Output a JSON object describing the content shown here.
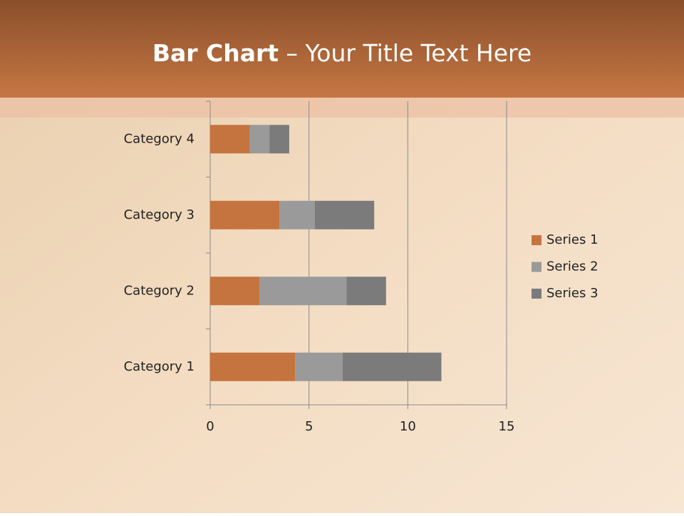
{
  "chart_data": {
    "type": "stacked-bar-horizontal",
    "title_main": "Bar Chart",
    "title_rest": "– Your Title Text Here",
    "categories": [
      "Category 1",
      "Category 2",
      "Category 3",
      "Category 4"
    ],
    "series": [
      {
        "name": "Series 1",
        "color": "#c5743f",
        "values": [
          4.3,
          2.5,
          3.5,
          2.0
        ]
      },
      {
        "name": "Series 2",
        "color": "#9a9a9a",
        "values": [
          2.4,
          4.4,
          1.8,
          1.0
        ]
      },
      {
        "name": "Series 3",
        "color": "#7b7b7b",
        "values": [
          5.0,
          2.0,
          3.0,
          1.0
        ]
      }
    ],
    "xlim": [
      0,
      15
    ],
    "xticks": [
      0,
      5,
      10,
      15
    ],
    "grid": true,
    "legend": "right"
  }
}
